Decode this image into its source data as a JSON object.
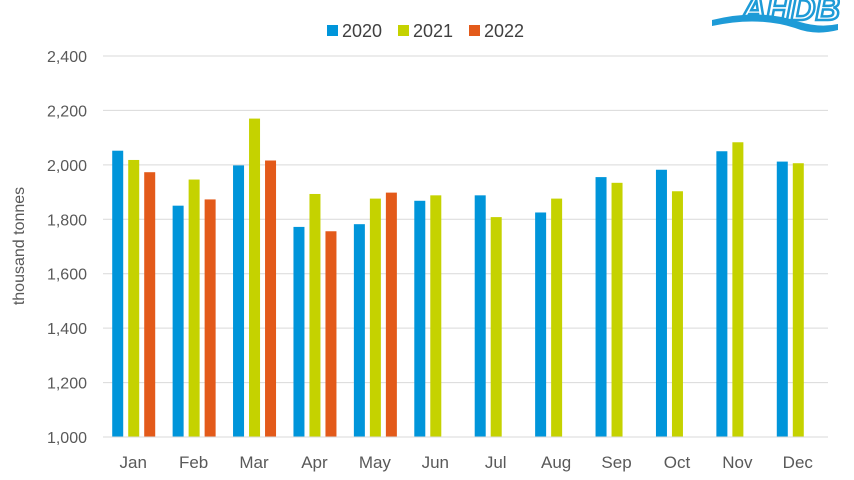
{
  "chart_data": {
    "type": "bar",
    "categories": [
      "Jan",
      "Feb",
      "Mar",
      "Apr",
      "May",
      "Jun",
      "Jul",
      "Aug",
      "Sep",
      "Oct",
      "Nov",
      "Dec"
    ],
    "series": [
      {
        "name": "2020",
        "color": "#0095DA",
        "values": [
          2052,
          1850,
          1998,
          1772,
          1782,
          1868,
          1888,
          1825,
          1955,
          1982,
          2050,
          2012
        ]
      },
      {
        "name": "2021",
        "color": "#C5D200",
        "values": [
          2018,
          1946,
          2170,
          1893,
          1876,
          1888,
          1808,
          1876,
          1934,
          1903,
          2083,
          2006
        ]
      },
      {
        "name": "2022",
        "color": "#E35A1A",
        "values": [
          1973,
          1873,
          2016,
          1756,
          1898,
          null,
          null,
          null,
          null,
          null,
          null,
          null
        ]
      }
    ],
    "title": "",
    "xlabel": "",
    "ylabel": "thousand tonnes",
    "ylim": [
      1000,
      2400
    ],
    "yticks": [
      1000,
      1200,
      1400,
      1600,
      1800,
      2000,
      2200,
      2400
    ],
    "ytick_labels": [
      "1,000",
      "1,200",
      "1,400",
      "1,600",
      "1,800",
      "2,000",
      "2,200",
      "2,400"
    ],
    "grid": true,
    "legend_position": "top-center"
  },
  "logo": {
    "text": "AHDB",
    "color": "#1E9BD7",
    "icon": "ahdb-logo"
  }
}
